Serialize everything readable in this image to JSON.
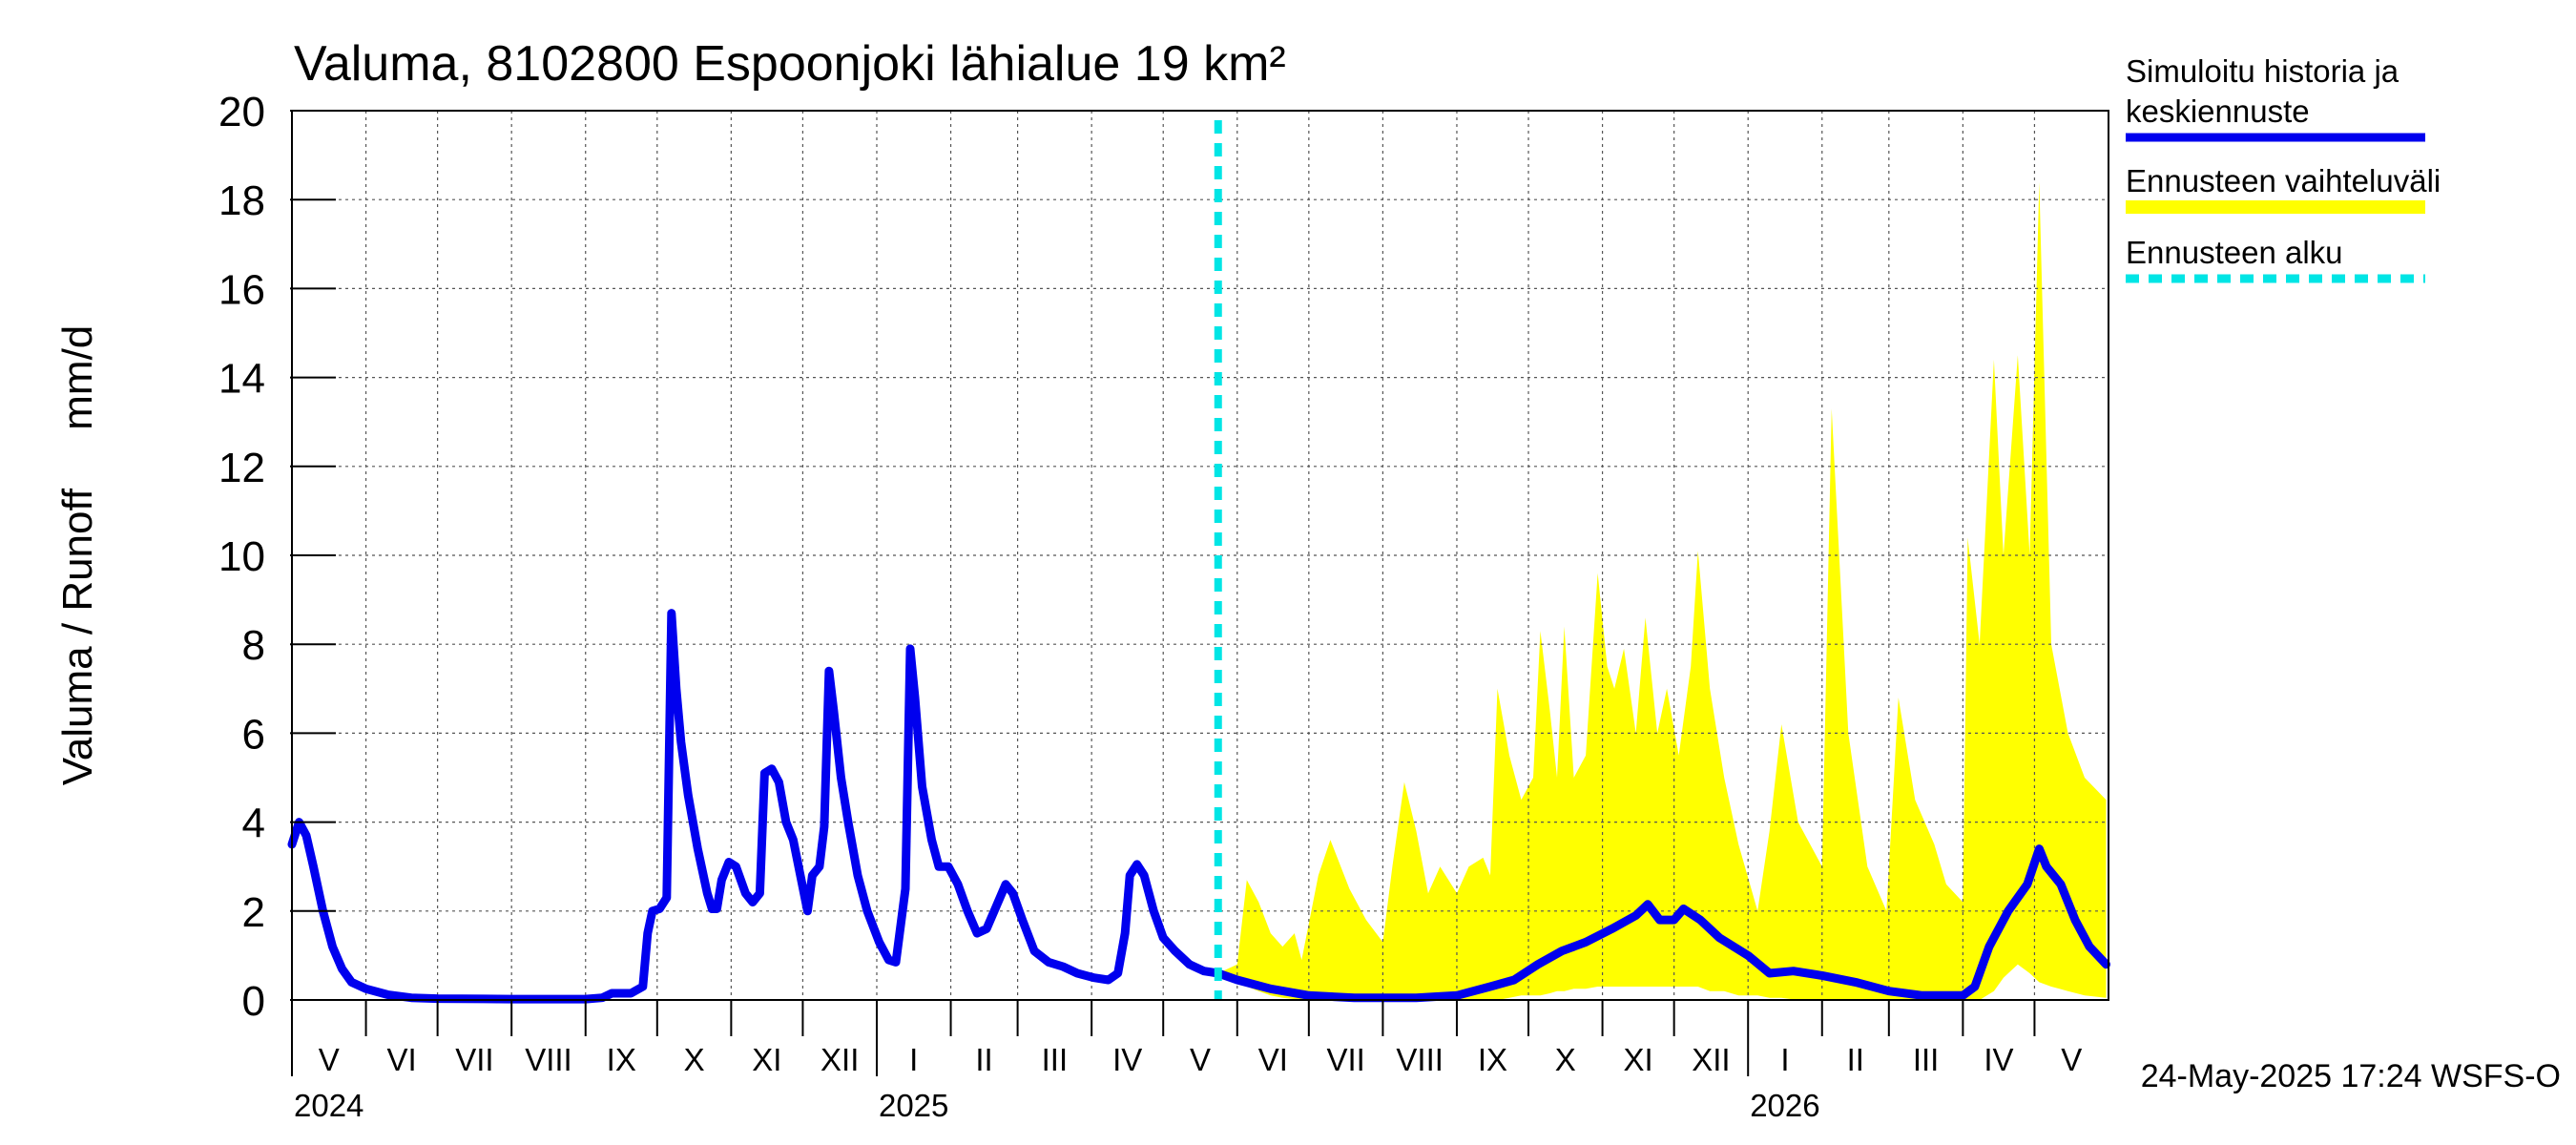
{
  "chart_data": {
    "type": "line",
    "title": "Valuma, 8102800 Espoonjoki lähialue 19 km²",
    "ylabel": "Valuma / Runoff     mm/d",
    "xlabel": "",
    "ylim": [
      0,
      20
    ],
    "yticks": [
      0,
      2,
      4,
      6,
      8,
      10,
      12,
      14,
      16,
      18,
      20
    ],
    "xlim": [
      "2024-05-01",
      "2026-05-31"
    ],
    "grid": true,
    "legend_position": "right",
    "months": [
      {
        "label": "V",
        "start": "2024-05-01",
        "end": "2024-06-01"
      },
      {
        "label": "VI",
        "start": "2024-06-01",
        "end": "2024-07-01"
      },
      {
        "label": "VII",
        "start": "2024-07-01",
        "end": "2024-08-01"
      },
      {
        "label": "VIII",
        "start": "2024-08-01",
        "end": "2024-09-01"
      },
      {
        "label": "IX",
        "start": "2024-09-01",
        "end": "2024-10-01"
      },
      {
        "label": "X",
        "start": "2024-10-01",
        "end": "2024-11-01"
      },
      {
        "label": "XI",
        "start": "2024-11-01",
        "end": "2024-12-01"
      },
      {
        "label": "XII",
        "start": "2024-12-01",
        "end": "2025-01-01"
      },
      {
        "label": "I",
        "start": "2025-01-01",
        "end": "2025-02-01"
      },
      {
        "label": "II",
        "start": "2025-02-01",
        "end": "2025-03-01"
      },
      {
        "label": "III",
        "start": "2025-03-01",
        "end": "2025-04-01"
      },
      {
        "label": "IV",
        "start": "2025-04-01",
        "end": "2025-05-01"
      },
      {
        "label": "V",
        "start": "2025-05-01",
        "end": "2025-06-01"
      },
      {
        "label": "VI",
        "start": "2025-06-01",
        "end": "2025-07-01"
      },
      {
        "label": "VII",
        "start": "2025-07-01",
        "end": "2025-08-01"
      },
      {
        "label": "VIII",
        "start": "2025-08-01",
        "end": "2025-09-01"
      },
      {
        "label": "IX",
        "start": "2025-09-01",
        "end": "2025-10-01"
      },
      {
        "label": "X",
        "start": "2025-10-01",
        "end": "2025-11-01"
      },
      {
        "label": "XI",
        "start": "2025-11-01",
        "end": "2025-12-01"
      },
      {
        "label": "XII",
        "start": "2025-12-01",
        "end": "2026-01-01"
      },
      {
        "label": "I",
        "start": "2026-01-01",
        "end": "2026-02-01"
      },
      {
        "label": "II",
        "start": "2026-02-01",
        "end": "2026-03-01"
      },
      {
        "label": "III",
        "start": "2026-03-01",
        "end": "2026-04-01"
      },
      {
        "label": "IV",
        "start": "2026-04-01",
        "end": "2026-05-01"
      },
      {
        "label": "V",
        "start": "2026-05-01",
        "end": "2026-06-01"
      }
    ],
    "years": [
      {
        "label": "2024",
        "date": "2024-05-01"
      },
      {
        "label": "2025",
        "date": "2025-01-01"
      },
      {
        "label": "2026",
        "date": "2026-01-01"
      }
    ],
    "forecast_start": "2025-05-24",
    "series": [
      {
        "name": "Simuloitu historia ja keskiennuste",
        "color": "#0000ee",
        "points": [
          [
            "2024-05-01",
            3.5
          ],
          [
            "2024-05-04",
            4.0
          ],
          [
            "2024-05-07",
            3.7
          ],
          [
            "2024-05-10",
            3.0
          ],
          [
            "2024-05-14",
            2.0
          ],
          [
            "2024-05-18",
            1.2
          ],
          [
            "2024-05-22",
            0.7
          ],
          [
            "2024-05-26",
            0.4
          ],
          [
            "2024-06-01",
            0.25
          ],
          [
            "2024-06-10",
            0.12
          ],
          [
            "2024-06-20",
            0.05
          ],
          [
            "2024-07-01",
            0.03
          ],
          [
            "2024-08-01",
            0.02
          ],
          [
            "2024-09-01",
            0.02
          ],
          [
            "2024-09-08",
            0.05
          ],
          [
            "2024-09-12",
            0.15
          ],
          [
            "2024-09-20",
            0.15
          ],
          [
            "2024-09-25",
            0.3
          ],
          [
            "2024-09-27",
            1.5
          ],
          [
            "2024-09-29",
            2.0
          ],
          [
            "2024-10-02",
            2.05
          ],
          [
            "2024-10-05",
            2.3
          ],
          [
            "2024-10-07",
            8.7
          ],
          [
            "2024-10-09",
            7.0
          ],
          [
            "2024-10-11",
            5.8
          ],
          [
            "2024-10-14",
            4.6
          ],
          [
            "2024-10-18",
            3.4
          ],
          [
            "2024-10-22",
            2.4
          ],
          [
            "2024-10-24",
            2.05
          ],
          [
            "2024-10-26",
            2.05
          ],
          [
            "2024-10-28",
            2.7
          ],
          [
            "2024-10-31",
            3.1
          ],
          [
            "2024-11-03",
            3.0
          ],
          [
            "2024-11-07",
            2.4
          ],
          [
            "2024-11-10",
            2.2
          ],
          [
            "2024-11-13",
            2.4
          ],
          [
            "2024-11-15",
            5.1
          ],
          [
            "2024-11-18",
            5.2
          ],
          [
            "2024-11-21",
            4.9
          ],
          [
            "2024-11-24",
            4.0
          ],
          [
            "2024-11-27",
            3.6
          ],
          [
            "2024-11-30",
            2.8
          ],
          [
            "2024-12-03",
            2.0
          ],
          [
            "2024-12-05",
            2.8
          ],
          [
            "2024-12-08",
            3.0
          ],
          [
            "2024-12-10",
            3.9
          ],
          [
            "2024-12-12",
            7.4
          ],
          [
            "2024-12-14",
            6.5
          ],
          [
            "2024-12-17",
            5.0
          ],
          [
            "2024-12-20",
            4.0
          ],
          [
            "2024-12-24",
            2.8
          ],
          [
            "2024-12-28",
            2.0
          ],
          [
            "2025-01-02",
            1.3
          ],
          [
            "2025-01-06",
            0.9
          ],
          [
            "2025-01-09",
            0.85
          ],
          [
            "2025-01-13",
            2.5
          ],
          [
            "2025-01-15",
            7.9
          ],
          [
            "2025-01-17",
            6.8
          ],
          [
            "2025-01-20",
            4.8
          ],
          [
            "2025-01-24",
            3.6
          ],
          [
            "2025-01-27",
            3.0
          ],
          [
            "2025-01-31",
            3.0
          ],
          [
            "2025-02-04",
            2.6
          ],
          [
            "2025-02-08",
            2.0
          ],
          [
            "2025-02-12",
            1.5
          ],
          [
            "2025-02-16",
            1.6
          ],
          [
            "2025-02-20",
            2.1
          ],
          [
            "2025-02-24",
            2.6
          ],
          [
            "2025-02-27",
            2.4
          ],
          [
            "2025-03-03",
            1.8
          ],
          [
            "2025-03-08",
            1.1
          ],
          [
            "2025-03-14",
            0.85
          ],
          [
            "2025-03-20",
            0.75
          ],
          [
            "2025-03-26",
            0.6
          ],
          [
            "2025-04-02",
            0.5
          ],
          [
            "2025-04-08",
            0.45
          ],
          [
            "2025-04-12",
            0.6
          ],
          [
            "2025-04-15",
            1.5
          ],
          [
            "2025-04-17",
            2.8
          ],
          [
            "2025-04-20",
            3.05
          ],
          [
            "2025-04-23",
            2.8
          ],
          [
            "2025-04-27",
            2.0
          ],
          [
            "2025-05-01",
            1.4
          ],
          [
            "2025-05-06",
            1.1
          ],
          [
            "2025-05-12",
            0.8
          ],
          [
            "2025-05-18",
            0.65
          ],
          [
            "2025-05-24",
            0.6
          ],
          [
            "2025-06-01",
            0.45
          ],
          [
            "2025-06-15",
            0.25
          ],
          [
            "2025-07-01",
            0.1
          ],
          [
            "2025-07-20",
            0.05
          ],
          [
            "2025-08-15",
            0.05
          ],
          [
            "2025-09-01",
            0.1
          ],
          [
            "2025-09-15",
            0.3
          ],
          [
            "2025-09-25",
            0.45
          ],
          [
            "2025-10-05",
            0.8
          ],
          [
            "2025-10-15",
            1.1
          ],
          [
            "2025-10-25",
            1.3
          ],
          [
            "2025-11-05",
            1.6
          ],
          [
            "2025-11-15",
            1.9
          ],
          [
            "2025-11-20",
            2.15
          ],
          [
            "2025-11-25",
            1.8
          ],
          [
            "2025-12-01",
            1.8
          ],
          [
            "2025-12-05",
            2.05
          ],
          [
            "2025-12-12",
            1.8
          ],
          [
            "2025-12-20",
            1.4
          ],
          [
            "2026-01-01",
            1.0
          ],
          [
            "2026-01-10",
            0.6
          ],
          [
            "2026-01-20",
            0.65
          ],
          [
            "2026-02-01",
            0.55
          ],
          [
            "2026-02-15",
            0.4
          ],
          [
            "2026-03-01",
            0.2
          ],
          [
            "2026-03-15",
            0.1
          ],
          [
            "2026-04-01",
            0.1
          ],
          [
            "2026-04-06",
            0.3
          ],
          [
            "2026-04-12",
            1.2
          ],
          [
            "2026-04-20",
            2.0
          ],
          [
            "2026-04-28",
            2.6
          ],
          [
            "2026-05-03",
            3.4
          ],
          [
            "2026-05-06",
            3.0
          ],
          [
            "2026-05-12",
            2.6
          ],
          [
            "2026-05-18",
            1.8
          ],
          [
            "2026-05-24",
            1.2
          ],
          [
            "2026-05-31",
            0.8
          ]
        ]
      }
    ],
    "range": {
      "name": "Ennusteen vaihteluväli",
      "color": "#ffff00",
      "points": [
        [
          "2025-05-24",
          0.6,
          0.5
        ],
        [
          "2025-06-01",
          0.8,
          0.4
        ],
        [
          "2025-06-05",
          2.7,
          0.3
        ],
        [
          "2025-06-10",
          2.2,
          0.2
        ],
        [
          "2025-06-15",
          1.5,
          0.1
        ],
        [
          "2025-06-20",
          1.2,
          0.05
        ],
        [
          "2025-06-25",
          1.5,
          0.02
        ],
        [
          "2025-06-28",
          0.9,
          0.0
        ],
        [
          "2025-07-05",
          2.8,
          0.0
        ],
        [
          "2025-07-10",
          3.6,
          0.0
        ],
        [
          "2025-07-18",
          2.5,
          0.0
        ],
        [
          "2025-07-25",
          1.8,
          0.0
        ],
        [
          "2025-08-01",
          1.3,
          0.0
        ],
        [
          "2025-08-05",
          3.0,
          0.0
        ],
        [
          "2025-08-10",
          4.9,
          0.0
        ],
        [
          "2025-08-15",
          3.8,
          0.0
        ],
        [
          "2025-08-20",
          2.4,
          0.0
        ],
        [
          "2025-08-25",
          3.0,
          0.0
        ],
        [
          "2025-09-01",
          2.4,
          0.0
        ],
        [
          "2025-09-06",
          3.0,
          0.0
        ],
        [
          "2025-09-12",
          3.2,
          0.0
        ],
        [
          "2025-09-15",
          2.8,
          0.0
        ],
        [
          "2025-09-18",
          7.0,
          0.0
        ],
        [
          "2025-09-23",
          5.5,
          0.05
        ],
        [
          "2025-09-28",
          4.5,
          0.1
        ],
        [
          "2025-10-03",
          5.0,
          0.1
        ],
        [
          "2025-10-06",
          8.3,
          0.1
        ],
        [
          "2025-10-10",
          6.5,
          0.15
        ],
        [
          "2025-10-13",
          5.0,
          0.2
        ],
        [
          "2025-10-16",
          8.4,
          0.2
        ],
        [
          "2025-10-20",
          5.0,
          0.25
        ],
        [
          "2025-10-25",
          5.5,
          0.25
        ],
        [
          "2025-10-30",
          9.6,
          0.3
        ],
        [
          "2025-11-03",
          7.5,
          0.3
        ],
        [
          "2025-11-06",
          7.0,
          0.3
        ],
        [
          "2025-11-10",
          7.9,
          0.3
        ],
        [
          "2025-11-15",
          6.0,
          0.3
        ],
        [
          "2025-11-19",
          8.6,
          0.3
        ],
        [
          "2025-11-24",
          6.0,
          0.3
        ],
        [
          "2025-11-28",
          7.0,
          0.3
        ],
        [
          "2025-12-03",
          5.5,
          0.3
        ],
        [
          "2025-12-08",
          7.5,
          0.3
        ],
        [
          "2025-12-11",
          10.1,
          0.3
        ],
        [
          "2025-12-16",
          7.0,
          0.2
        ],
        [
          "2025-12-22",
          5.0,
          0.2
        ],
        [
          "2025-12-28",
          3.5,
          0.1
        ],
        [
          "2026-01-05",
          2.0,
          0.1
        ],
        [
          "2026-01-10",
          3.8,
          0.05
        ],
        [
          "2026-01-15",
          6.2,
          0.05
        ],
        [
          "2026-01-22",
          4.0,
          0.0
        ],
        [
          "2026-02-01",
          3.0,
          0.0
        ],
        [
          "2026-02-05",
          13.3,
          0.0
        ],
        [
          "2026-02-12",
          6.0,
          0.0
        ],
        [
          "2026-02-20",
          3.0,
          0.0
        ],
        [
          "2026-02-28",
          2.0,
          0.0
        ],
        [
          "2026-03-05",
          6.8,
          0.0
        ],
        [
          "2026-03-12",
          4.5,
          0.0
        ],
        [
          "2026-03-20",
          3.5,
          0.0
        ],
        [
          "2026-03-25",
          2.6,
          0.0
        ],
        [
          "2026-04-01",
          2.2,
          0.0
        ],
        [
          "2026-04-03",
          10.4,
          0.0
        ],
        [
          "2026-04-08",
          8.0,
          0.0
        ],
        [
          "2026-04-14",
          14.4,
          0.2
        ],
        [
          "2026-04-18",
          10.0,
          0.5
        ],
        [
          "2026-04-24",
          14.5,
          0.8
        ],
        [
          "2026-04-29",
          10.0,
          0.6
        ],
        [
          "2026-05-03",
          18.4,
          0.4
        ],
        [
          "2026-05-08",
          8.0,
          0.3
        ],
        [
          "2026-05-15",
          6.0,
          0.2
        ],
        [
          "2026-05-22",
          5.0,
          0.1
        ],
        [
          "2026-05-31",
          4.5,
          0.05
        ]
      ]
    },
    "legend": [
      {
        "label": "Simuloitu historia ja",
        "label2": "keskiennuste",
        "color": "#0000ee",
        "style": "solid"
      },
      {
        "label": "Ennusteen vaihteluväli",
        "color": "#ffff00",
        "style": "solid"
      },
      {
        "label": "Ennusteen alku",
        "color": "#00e5e5",
        "style": "dashed"
      }
    ],
    "footer": "24-May-2025 17:24 WSFS-O"
  }
}
